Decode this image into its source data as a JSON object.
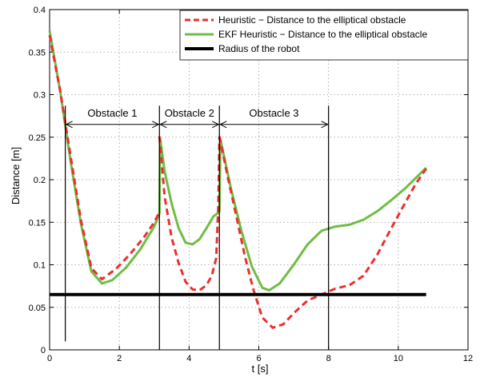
{
  "chart_data": {
    "type": "line",
    "title": "",
    "xlabel": "t [s]",
    "ylabel": "Distance [m]",
    "xlim": [
      0,
      12
    ],
    "ylim": [
      0,
      0.4
    ],
    "xticks": [
      0,
      2,
      4,
      6,
      8,
      10,
      12
    ],
    "xtick_labels": [
      "0",
      "2",
      "4",
      "6",
      "8",
      "10",
      "12"
    ],
    "yticks": [
      0,
      0.05,
      0.1,
      0.15,
      0.2,
      0.25,
      0.3,
      0.35,
      0.4
    ],
    "ytick_labels": [
      "0",
      "0.05",
      "0.1",
      "0.15",
      "0.2",
      "0.25",
      "0.3",
      "0.35",
      "0.4"
    ],
    "grid": true,
    "legend_position": "top-right",
    "series": [
      {
        "name": "Heuristic − Distance to the elliptical obstacle",
        "color": "#e8312f",
        "style": "dashed",
        "segments": [
          [
            [
              0.0,
              0.37
            ],
            [
              0.3,
              0.305
            ],
            [
              0.6,
              0.228
            ],
            [
              0.9,
              0.152
            ],
            [
              1.2,
              0.096
            ],
            [
              1.5,
              0.083
            ],
            [
              1.9,
              0.095
            ],
            [
              2.3,
              0.112
            ],
            [
              2.7,
              0.132
            ],
            [
              3.0,
              0.15
            ],
            [
              3.15,
              0.162
            ]
          ],
          [
            [
              3.15,
              0.251
            ],
            [
              3.3,
              0.18
            ],
            [
              3.5,
              0.132
            ],
            [
              3.7,
              0.102
            ],
            [
              3.9,
              0.08
            ],
            [
              4.1,
              0.071
            ],
            [
              4.3,
              0.07
            ],
            [
              4.5,
              0.076
            ],
            [
              4.65,
              0.087
            ],
            [
              4.78,
              0.108
            ],
            [
              4.84,
              0.17
            ],
            [
              4.87,
              0.251
            ]
          ],
          [
            [
              4.87,
              0.251
            ],
            [
              5.1,
              0.205
            ],
            [
              5.35,
              0.158
            ],
            [
              5.6,
              0.11
            ],
            [
              5.85,
              0.07
            ],
            [
              6.1,
              0.038
            ],
            [
              6.4,
              0.026
            ],
            [
              6.7,
              0.03
            ],
            [
              7.0,
              0.043
            ],
            [
              7.4,
              0.058
            ],
            [
              7.8,
              0.065
            ],
            [
              8.2,
              0.072
            ],
            [
              8.6,
              0.076
            ],
            [
              9.0,
              0.087
            ],
            [
              9.4,
              0.112
            ],
            [
              9.8,
              0.143
            ],
            [
              10.2,
              0.173
            ],
            [
              10.5,
              0.195
            ],
            [
              10.8,
              0.213
            ]
          ]
        ]
      },
      {
        "name": "EKF Heuristic − Distance to the elliptical obstacle",
        "color": "#6fbd44",
        "style": "solid",
        "segments": [
          [
            [
              0.0,
              0.375
            ],
            [
              0.3,
              0.305
            ],
            [
              0.6,
              0.222
            ],
            [
              0.9,
              0.148
            ],
            [
              1.2,
              0.092
            ],
            [
              1.5,
              0.078
            ],
            [
              1.8,
              0.082
            ],
            [
              2.2,
              0.097
            ],
            [
              2.6,
              0.118
            ],
            [
              3.0,
              0.145
            ],
            [
              3.15,
              0.16
            ]
          ],
          [
            [
              3.15,
              0.16
            ],
            [
              3.17,
              0.248
            ],
            [
              3.3,
              0.21
            ],
            [
              3.5,
              0.172
            ],
            [
              3.7,
              0.143
            ],
            [
              3.9,
              0.126
            ],
            [
              4.1,
              0.124
            ],
            [
              4.3,
              0.13
            ],
            [
              4.5,
              0.143
            ],
            [
              4.7,
              0.157
            ],
            [
              4.87,
              0.162
            ]
          ],
          [
            [
              4.87,
              0.162
            ],
            [
              4.9,
              0.247
            ],
            [
              5.2,
              0.19
            ],
            [
              5.5,
              0.14
            ],
            [
              5.8,
              0.098
            ],
            [
              6.1,
              0.073
            ],
            [
              6.3,
              0.07
            ],
            [
              6.6,
              0.078
            ],
            [
              7.0,
              0.1
            ],
            [
              7.4,
              0.124
            ],
            [
              7.8,
              0.14
            ],
            [
              8.2,
              0.145
            ],
            [
              8.6,
              0.147
            ],
            [
              9.0,
              0.153
            ],
            [
              9.4,
              0.163
            ],
            [
              9.8,
              0.176
            ],
            [
              10.2,
              0.19
            ],
            [
              10.5,
              0.202
            ],
            [
              10.8,
              0.214
            ]
          ]
        ]
      },
      {
        "name": "Radius of the robot",
        "color": "#000000",
        "style": "solid-thick",
        "segments": [
          [
            [
              0.0,
              0.065
            ],
            [
              10.8,
              0.065
            ]
          ]
        ]
      }
    ],
    "vertical_lines": [
      {
        "x": 0.45,
        "y_min": 0.01,
        "y_max": 0.287
      },
      {
        "x": 3.15,
        "y_min": 0.0,
        "y_max": 0.287
      },
      {
        "x": 4.87,
        "y_min": 0.0,
        "y_max": 0.287
      },
      {
        "x": 8.0,
        "y_min": 0.0,
        "y_max": 0.287
      }
    ],
    "regions": [
      {
        "label": "Obstacle 1",
        "x_start": 0.45,
        "x_end": 3.15,
        "y": 0.265
      },
      {
        "label": "Obstacle 2",
        "x_start": 3.15,
        "x_end": 4.87,
        "y": 0.265
      },
      {
        "label": "Obstacle 3",
        "x_start": 4.87,
        "x_end": 8.0,
        "y": 0.265
      }
    ]
  }
}
